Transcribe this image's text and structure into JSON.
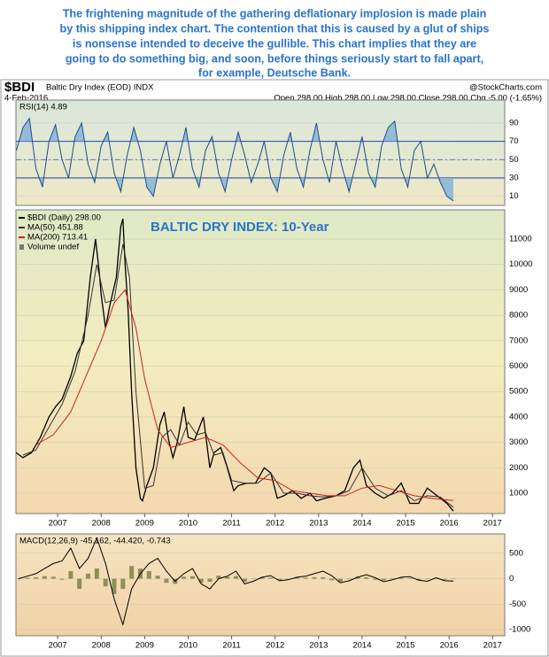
{
  "caption": [
    "The frightening magnitude of the gathering deflationary implosion is made plain",
    "by this shipping index chart. The contention that this is caused by a glut of ships",
    "is nonsense intended to deceive the gullible. This chart implies that they are",
    "going to do something big, and soon, before things seriously start to fall apart,",
    "for example, Deutsche Bank."
  ],
  "header": {
    "symbol": "$BDI",
    "name": "Baltic Dry Index (EOD) INDX",
    "date": "4-Feb-2016",
    "source": "@StockCharts.com",
    "quote": "Open 298.00 High 298.00 Low 298.00 Close 298.00 Chg -5.00 (-1.65%)"
  },
  "chart_data": [
    {
      "type": "line",
      "title": "RSI(14) 4.89",
      "xlim": [
        2006.04,
        2017.28
      ],
      "ylim": [
        0,
        115
      ],
      "yticks": [
        10,
        30,
        50,
        70,
        90
      ],
      "reference_lines": [
        70,
        50,
        30
      ],
      "fill_extremes": true,
      "x": [
        2006.05,
        2006.2,
        2006.35,
        2006.5,
        2006.65,
        2006.8,
        2006.95,
        2007.1,
        2007.25,
        2007.4,
        2007.55,
        2007.7,
        2007.85,
        2008,
        2008.15,
        2008.3,
        2008.45,
        2008.6,
        2008.75,
        2008.9,
        2009.05,
        2009.2,
        2009.35,
        2009.5,
        2009.65,
        2009.8,
        2009.95,
        2010.1,
        2010.25,
        2010.4,
        2010.55,
        2010.7,
        2010.85,
        2011,
        2011.15,
        2011.3,
        2011.45,
        2011.6,
        2011.75,
        2011.9,
        2012.05,
        2012.2,
        2012.35,
        2012.5,
        2012.65,
        2012.8,
        2012.95,
        2013.1,
        2013.25,
        2013.4,
        2013.55,
        2013.7,
        2013.85,
        2014,
        2014.15,
        2014.3,
        2014.45,
        2014.6,
        2014.75,
        2014.9,
        2015.05,
        2015.2,
        2015.35,
        2015.5,
        2015.65,
        2015.8,
        2015.95,
        2016.1
      ],
      "series": [
        {
          "color": "#1d4c8f",
          "values": [
            60,
            85,
            95,
            40,
            20,
            70,
            88,
            50,
            30,
            75,
            90,
            45,
            25,
            65,
            80,
            35,
            15,
            55,
            85,
            60,
            20,
            10,
            45,
            70,
            30,
            55,
            85,
            40,
            20,
            60,
            75,
            35,
            15,
            50,
            80,
            55,
            25,
            45,
            70,
            30,
            15,
            55,
            80,
            40,
            20,
            60,
            90,
            50,
            25,
            70,
            40,
            15,
            45,
            75,
            35,
            20,
            65,
            85,
            92,
            40,
            20,
            60,
            70,
            30,
            45,
            25,
            10,
            4.89
          ]
        }
      ]
    },
    {
      "type": "line",
      "annotations": [
        "BALTIC DRY INDEX: 10-Year"
      ],
      "volume_label": "Volume undef",
      "xlim": [
        2006.04,
        2017.28
      ],
      "ylim": [
        200,
        12150
      ],
      "yticks": [
        1000,
        2000,
        3000,
        4000,
        5000,
        6000,
        7000,
        8000,
        9000,
        10000,
        11000
      ],
      "xticks": [
        2007,
        2008,
        2009,
        2010,
        2011,
        2012,
        2013,
        2014,
        2015,
        2016,
        2017
      ],
      "series": [
        {
          "name": "$BDI (Daily) 298.00",
          "color": "#000000",
          "x": [
            2006.04,
            2006.2,
            2006.4,
            2006.6,
            2006.8,
            2006.95,
            2007.1,
            2007.3,
            2007.45,
            2007.6,
            2007.75,
            2007.87,
            2007.95,
            2008.0,
            2008.1,
            2008.2,
            2008.35,
            2008.45,
            2008.5,
            2008.55,
            2008.62,
            2008.7,
            2008.8,
            2008.9,
            2008.95,
            2009.05,
            2009.2,
            2009.35,
            2009.45,
            2009.55,
            2009.65,
            2009.75,
            2009.9,
            2010.0,
            2010.15,
            2010.35,
            2010.5,
            2010.6,
            2010.75,
            2010.9,
            2011.05,
            2011.15,
            2011.35,
            2011.55,
            2011.75,
            2011.9,
            2012.05,
            2012.2,
            2012.4,
            2012.6,
            2012.8,
            2012.95,
            2013.15,
            2013.4,
            2013.6,
            2013.8,
            2013.95,
            2014.1,
            2014.3,
            2014.5,
            2014.7,
            2014.9,
            2015.1,
            2015.3,
            2015.5,
            2015.65,
            2015.8,
            2015.95,
            2016.1
          ],
          "values": [
            2600,
            2400,
            2600,
            3200,
            4000,
            4400,
            4700,
            5600,
            6500,
            7000,
            9500,
            11000,
            9800,
            8800,
            7500,
            8400,
            9500,
            11500,
            11800,
            10000,
            8200,
            5000,
            2000,
            800,
            700,
            1300,
            2000,
            3700,
            4200,
            3100,
            2400,
            3000,
            4400,
            3200,
            3100,
            4000,
            2000,
            2600,
            2800,
            2000,
            1100,
            1300,
            1400,
            1400,
            2000,
            1800,
            800,
            900,
            1100,
            800,
            1000,
            700,
            800,
            900,
            1100,
            2000,
            2300,
            1300,
            1000,
            800,
            1000,
            1400,
            600,
            600,
            1200,
            1000,
            800,
            600,
            298
          ]
        },
        {
          "name": "MA(50) 451.88",
          "color": "#333333",
          "x": [
            2006.2,
            2006.5,
            2006.8,
            2007.1,
            2007.4,
            2007.7,
            2007.9,
            2008.1,
            2008.3,
            2008.5,
            2008.65,
            2008.8,
            2009.0,
            2009.2,
            2009.4,
            2009.6,
            2009.8,
            2010.0,
            2010.2,
            2010.4,
            2010.6,
            2010.8,
            2011.0,
            2011.3,
            2011.6,
            2011.9,
            2012.2,
            2012.5,
            2012.8,
            2013.1,
            2013.4,
            2013.7,
            2014.0,
            2014.3,
            2014.6,
            2014.9,
            2015.2,
            2015.5,
            2015.8,
            2016.1
          ],
          "values": [
            2500,
            2700,
            3600,
            4500,
            5800,
            8000,
            10000,
            8500,
            8600,
            10800,
            9500,
            5000,
            1200,
            1300,
            3200,
            3500,
            2900,
            3800,
            3300,
            3400,
            2500,
            2600,
            1500,
            1400,
            1400,
            1800,
            1000,
            1000,
            900,
            850,
            900,
            1100,
            2000,
            1200,
            900,
            1100,
            700,
            900,
            850,
            451.88
          ]
        },
        {
          "name": "MA(200) 713.41",
          "color": "#cc2222",
          "x": [
            2006.5,
            2006.9,
            2007.3,
            2007.7,
            2008.0,
            2008.3,
            2008.55,
            2008.8,
            2009.0,
            2009.3,
            2009.6,
            2010.0,
            2010.4,
            2010.8,
            2011.2,
            2011.6,
            2012.0,
            2012.4,
            2012.8,
            2013.2,
            2013.6,
            2014.0,
            2014.4,
            2014.8,
            2015.2,
            2015.6,
            2016.1
          ],
          "values": [
            2900,
            3300,
            4200,
            5800,
            7000,
            8500,
            9000,
            7500,
            5500,
            3500,
            2800,
            3000,
            3200,
            2900,
            2200,
            1600,
            1500,
            1100,
            1000,
            900,
            900,
            1200,
            1300,
            1100,
            900,
            800,
            713.41
          ]
        }
      ]
    },
    {
      "type": "line",
      "title": "MACD(12,26,9) -45.162, -44.420, -0.743",
      "xlim": [
        2006.04,
        2017.28
      ],
      "ylim": [
        -1120,
        880
      ],
      "yticks": [
        500,
        0,
        -500,
        -1000
      ],
      "xticks": [
        2007,
        2008,
        2009,
        2010,
        2011,
        2012,
        2013,
        2014,
        2015,
        2016,
        2017
      ],
      "x": [
        2006.1,
        2006.3,
        2006.5,
        2006.7,
        2006.9,
        2007.1,
        2007.3,
        2007.5,
        2007.7,
        2007.9,
        2008.1,
        2008.3,
        2008.5,
        2008.7,
        2008.9,
        2009.1,
        2009.3,
        2009.5,
        2009.7,
        2009.9,
        2010.1,
        2010.3,
        2010.5,
        2010.7,
        2010.9,
        2011.1,
        2011.3,
        2011.5,
        2011.7,
        2011.9,
        2012.1,
        2012.3,
        2012.5,
        2012.7,
        2012.9,
        2013.1,
        2013.3,
        2013.5,
        2013.7,
        2013.9,
        2014.1,
        2014.3,
        2014.5,
        2014.7,
        2014.9,
        2015.1,
        2015.3,
        2015.5,
        2015.7,
        2015.9,
        2016.1
      ],
      "series": [
        {
          "kind": "bar",
          "color": "#8f8f55",
          "values": [
            0,
            20,
            30,
            50,
            40,
            -20,
            150,
            -200,
            100,
            200,
            -150,
            -300,
            -200,
            250,
            200,
            150,
            60,
            -80,
            -100,
            40,
            50,
            -80,
            -60,
            60,
            40,
            50,
            -60,
            0,
            30,
            20,
            -30,
            0,
            30,
            20,
            30,
            30,
            -30,
            -60,
            0,
            40,
            30,
            -20,
            -30,
            10,
            20,
            10,
            -30,
            -10,
            20,
            -20,
            -0.743
          ]
        },
        {
          "color": "#000000",
          "values": [
            0,
            50,
            100,
            200,
            300,
            350,
            600,
            200,
            400,
            800,
            300,
            -400,
            -900,
            -200,
            100,
            300,
            400,
            150,
            -50,
            100,
            200,
            -100,
            -200,
            0,
            50,
            150,
            -100,
            -50,
            30,
            60,
            -40,
            -20,
            30,
            50,
            100,
            150,
            60,
            -80,
            -40,
            30,
            80,
            20,
            -60,
            -20,
            30,
            40,
            -30,
            -50,
            20,
            -40,
            -45.162
          ]
        }
      ]
    }
  ]
}
